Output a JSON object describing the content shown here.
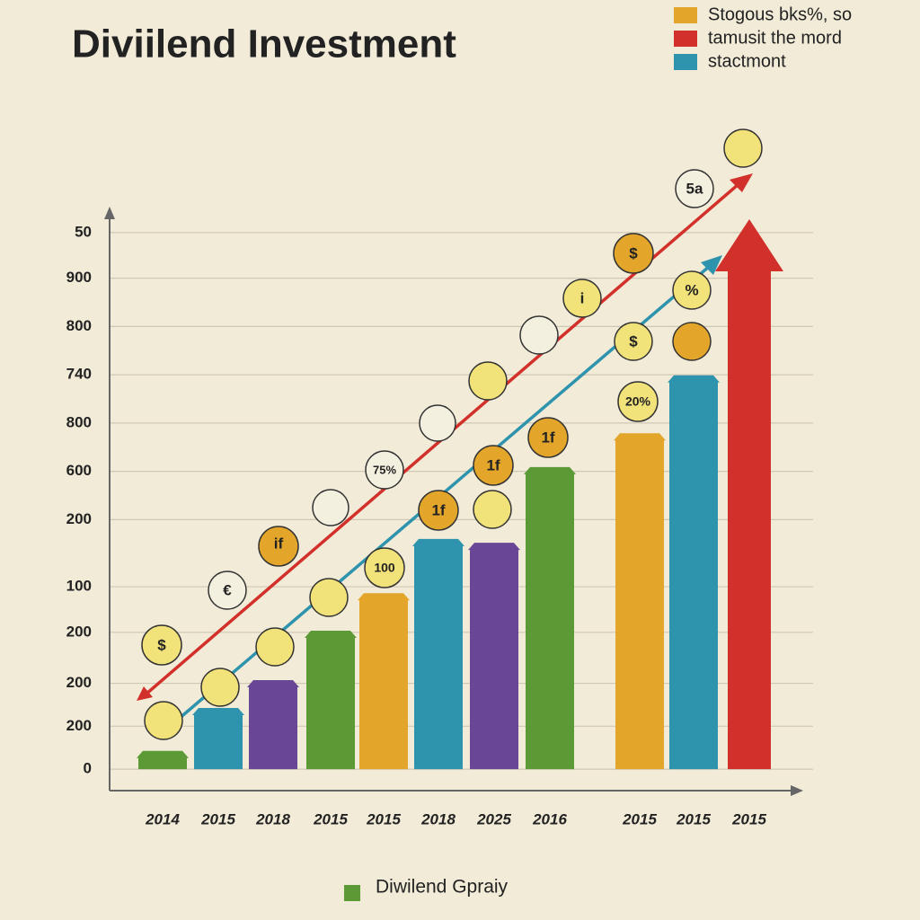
{
  "chart_data": {
    "type": "bar",
    "title": "Diviilend Investment",
    "categories": [
      "2014",
      "2015",
      "2018",
      "2015",
      "2015",
      "2018",
      "2025",
      "2016",
      "2015",
      "2015",
      "2015"
    ],
    "values": [
      34,
      114,
      166,
      258,
      328,
      429,
      422,
      563,
      626,
      734,
      1025
    ],
    "colors": [
      "#5c9a36",
      "#2e93ad",
      "#6a4796",
      "#5c9a36",
      "#e3a52a",
      "#2e93ad",
      "#6a4796",
      "#5c9a36",
      "#e3a52a",
      "#2e93ad",
      "#d2302a"
    ],
    "ylim": [
      -40,
      1040
    ],
    "yticks": [
      {
        "value": 1000,
        "label": "50"
      },
      {
        "value": 915,
        "label": "900"
      },
      {
        "value": 825,
        "label": "800"
      },
      {
        "value": 735,
        "label": "740"
      },
      {
        "value": 645,
        "label": "800"
      },
      {
        "value": 555,
        "label": "600"
      },
      {
        "value": 465,
        "label": "200"
      },
      {
        "value": 340,
        "label": "100"
      },
      {
        "value": 255,
        "label": "200"
      },
      {
        "value": 160,
        "label": "200"
      },
      {
        "value": 80,
        "label": "200"
      },
      0
    ],
    "grid": true,
    "legend": [
      {
        "label": "Stogous bks%, so",
        "color": "#e3a52a"
      },
      {
        "label": "tamusit the mord",
        "color": "#d2302a"
      },
      {
        "label": "stactmont",
        "color": "#2e93ad"
      }
    ],
    "footer_legend": {
      "label": "Diwilend Gpraiy",
      "color": "#5c9a36"
    },
    "badges": [
      "$",
      "€",
      "if",
      "75%",
      "100",
      "1f",
      "1f",
      "1f",
      "20%",
      "$",
      "$",
      "i",
      "%",
      "5a"
    ]
  }
}
